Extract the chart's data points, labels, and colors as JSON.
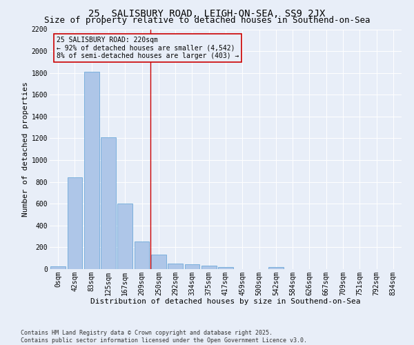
{
  "title1": "25, SALISBURY ROAD, LEIGH-ON-SEA, SS9 2JX",
  "title2": "Size of property relative to detached houses in Southend-on-Sea",
  "xlabel": "Distribution of detached houses by size in Southend-on-Sea",
  "ylabel": "Number of detached properties",
  "bar_labels": [
    "0sqm",
    "42sqm",
    "83sqm",
    "125sqm",
    "167sqm",
    "209sqm",
    "250sqm",
    "292sqm",
    "334sqm",
    "375sqm",
    "417sqm",
    "459sqm",
    "500sqm",
    "542sqm",
    "584sqm",
    "626sqm",
    "667sqm",
    "709sqm",
    "751sqm",
    "792sqm",
    "834sqm"
  ],
  "bar_values": [
    25,
    845,
    1810,
    1210,
    600,
    255,
    130,
    50,
    45,
    30,
    20,
    0,
    0,
    20,
    0,
    0,
    0,
    0,
    0,
    0,
    0
  ],
  "bar_color": "#aec6e8",
  "bar_edge_color": "#5a9fd4",
  "vline_x": 5.5,
  "vline_color": "#cc0000",
  "annotation_text": "25 SALISBURY ROAD: 220sqm\n← 92% of detached houses are smaller (4,542)\n8% of semi-detached houses are larger (403) →",
  "annotation_box_color": "#cc0000",
  "ylim": [
    0,
    2200
  ],
  "yticks": [
    0,
    200,
    400,
    600,
    800,
    1000,
    1200,
    1400,
    1600,
    1800,
    2000,
    2200
  ],
  "bg_color": "#e8eef8",
  "footnote": "Contains HM Land Registry data © Crown copyright and database right 2025.\nContains public sector information licensed under the Open Government Licence v3.0.",
  "title1_fontsize": 10,
  "title2_fontsize": 9,
  "xlabel_fontsize": 8,
  "ylabel_fontsize": 8,
  "tick_fontsize": 7,
  "annot_fontsize": 7,
  "footnote_fontsize": 6
}
